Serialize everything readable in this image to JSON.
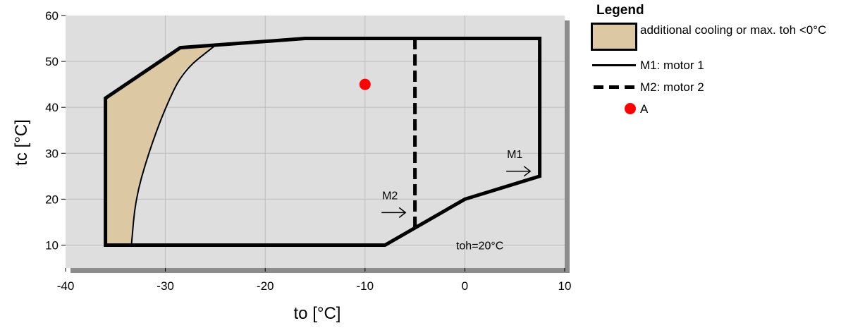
{
  "chart_data": {
    "type": "area",
    "title": "",
    "xlabel": "to [°C]",
    "ylabel": "tc [°C]",
    "xlim": [
      -40,
      10
    ],
    "ylim": [
      5,
      60
    ],
    "x_ticks": [
      "-40",
      "-30",
      "-20",
      "-10",
      "0",
      "10"
    ],
    "y_ticks": [
      "10",
      "20",
      "30",
      "40",
      "50",
      "60"
    ],
    "x_tick_values": [
      -40,
      -30,
      -20,
      -10,
      0,
      10
    ],
    "y_tick_values": [
      10,
      20,
      30,
      40,
      50,
      60
    ],
    "grid": true,
    "legend_position": "right",
    "series": [
      {
        "name": "M1: motor 1",
        "kind": "envelope",
        "line_style": "solid",
        "points": [
          [
            -36,
            10
          ],
          [
            -8,
            10
          ],
          [
            0,
            20
          ],
          [
            7.5,
            25
          ],
          [
            7.5,
            55
          ],
          [
            -16,
            55
          ],
          [
            -28.5,
            53
          ],
          [
            -36,
            42
          ],
          [
            -36,
            10
          ]
        ]
      },
      {
        "name": "M2: motor 2",
        "kind": "limit",
        "line_style": "dashed",
        "points": [
          [
            -5,
            13.75
          ],
          [
            -5,
            55
          ]
        ]
      },
      {
        "name": "additional cooling or max. toh <0°C",
        "kind": "region",
        "points": [
          [
            -36,
            10
          ],
          [
            -33.4,
            10
          ],
          [
            -33,
            20
          ],
          [
            -31.7,
            30
          ],
          [
            -30,
            40
          ],
          [
            -28.2,
            48
          ],
          [
            -25,
            53.5
          ],
          [
            -28.5,
            53
          ],
          [
            -36,
            42
          ],
          [
            -36,
            10
          ]
        ]
      },
      {
        "name": "A",
        "kind": "point",
        "points": [
          [
            -10,
            45
          ]
        ]
      }
    ],
    "annotations": [
      {
        "text": "M1",
        "x": 5,
        "y": 29
      },
      {
        "text": "M2",
        "x": -7.5,
        "y": 20
      },
      {
        "text": "toh=20°C",
        "x": 1.5,
        "y": 10
      }
    ]
  },
  "legend": {
    "title": "Legend",
    "items": [
      {
        "type": "region",
        "color": "#dcc9a4",
        "label": "additional cooling or max. toh <0°C"
      },
      {
        "type": "solid",
        "label": "M1: motor 1"
      },
      {
        "type": "dashed",
        "label": "M2: motor 2"
      },
      {
        "type": "point",
        "color": "#ff0000",
        "label": "A"
      }
    ]
  },
  "colors": {
    "plot_bg": "#dedede",
    "shadow": "#8c8c8c",
    "region": "#dcc9a4",
    "point": "#ff0000",
    "grid": "#bdbdbd"
  }
}
